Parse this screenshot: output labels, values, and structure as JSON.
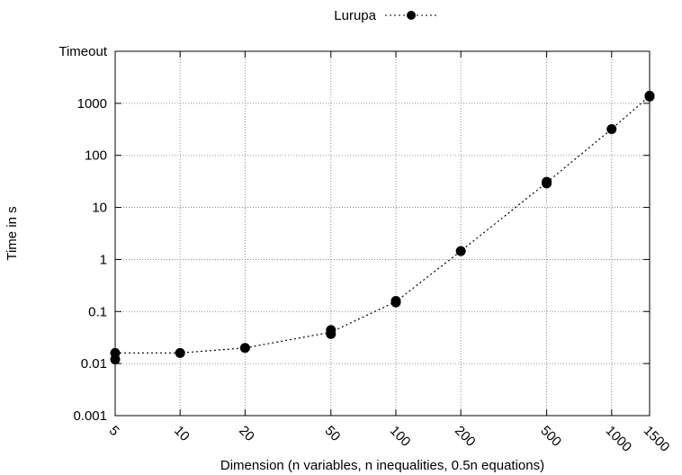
{
  "chart_data": {
    "type": "scatter",
    "title": "",
    "xlabel": "Dimension (n variables, n inequalities, 0.5n equations)",
    "ylabel": "Time in s",
    "x_scale": "log",
    "y_scale": "log",
    "grid": true,
    "legend_position": "top-center",
    "x_ticks": [
      5,
      10,
      20,
      50,
      100,
      200,
      500,
      1000,
      1500
    ],
    "x_tick_labels": [
      "5",
      "10",
      "20",
      "50",
      "100",
      "200",
      "500",
      "1000",
      "1500"
    ],
    "y_ticks": [
      0.001,
      0.01,
      0.1,
      1,
      10,
      100,
      1000
    ],
    "y_tick_labels": [
      "0.001",
      "0.01",
      "0.1",
      "1",
      "10",
      "100",
      "1000"
    ],
    "y_top_label": "Timeout",
    "xlim": [
      5,
      1500
    ],
    "ylim": [
      0.001,
      10000
    ],
    "series": [
      {
        "name": "Lurupa",
        "color": "#000000",
        "marker": "circle",
        "line_style": "dotted",
        "points": [
          [
            5,
            0.016
          ],
          [
            5,
            0.012
          ],
          [
            10,
            0.016
          ],
          [
            20,
            0.02
          ],
          [
            50,
            0.044
          ],
          [
            50,
            0.037
          ],
          [
            100,
            0.16
          ],
          [
            100,
            0.15
          ],
          [
            200,
            1.45
          ],
          [
            500,
            31
          ],
          [
            500,
            29
          ],
          [
            1000,
            320
          ],
          [
            1500,
            1400
          ],
          [
            1500,
            1350
          ]
        ],
        "line": [
          [
            5,
            0.016
          ],
          [
            10,
            0.016
          ],
          [
            20,
            0.02
          ],
          [
            50,
            0.04
          ],
          [
            100,
            0.155
          ],
          [
            200,
            1.45
          ],
          [
            500,
            30
          ],
          [
            1000,
            320
          ],
          [
            1500,
            1380
          ]
        ]
      }
    ]
  }
}
